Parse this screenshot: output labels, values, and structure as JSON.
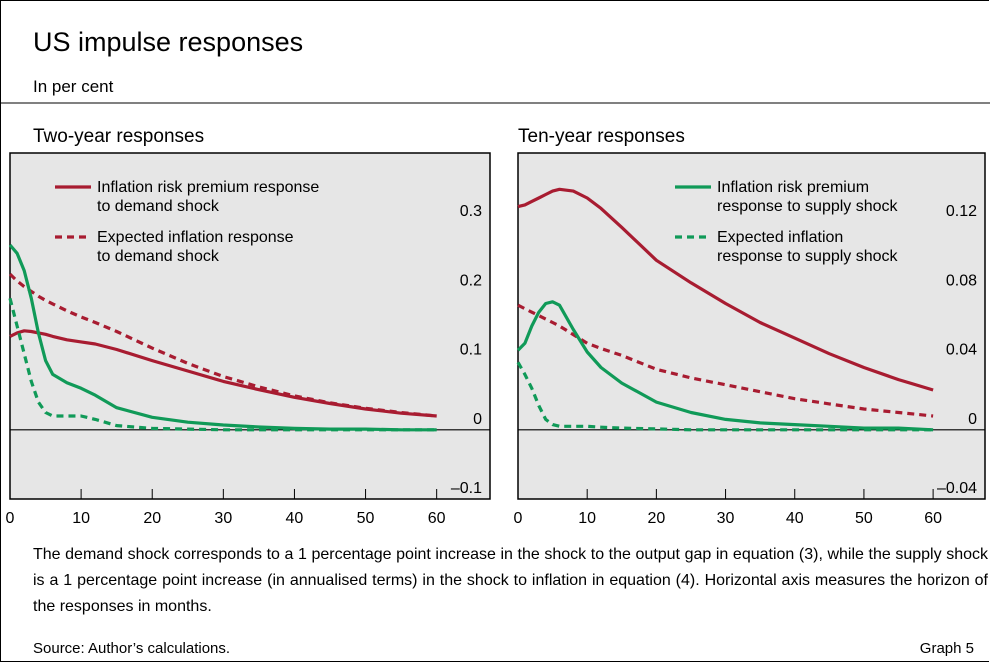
{
  "header": {
    "title": "US impulse responses",
    "subtitle": "In per cent"
  },
  "chart_data": [
    {
      "type": "line",
      "title": "Two-year responses",
      "x": [
        0,
        1,
        2,
        3,
        4,
        5,
        6,
        8,
        10,
        12,
        15,
        20,
        25,
        30,
        35,
        40,
        45,
        50,
        55,
        60
      ],
      "xlim": [
        0,
        67.5
      ],
      "xticks": [
        0,
        10,
        20,
        30,
        40,
        50,
        60
      ],
      "ylim": [
        -0.1,
        0.4
      ],
      "yticks": [
        {
          "value": -0.1,
          "label": "–0.1"
        },
        0,
        0.1,
        0.2,
        0.3
      ],
      "legend": "upper left",
      "series": [
        {
          "name": "Inflation risk premium response to demand shock",
          "color": "#a81c31",
          "dashed": false,
          "values": [
            0.135,
            0.14,
            0.143,
            0.142,
            0.14,
            0.138,
            0.135,
            0.13,
            0.127,
            0.124,
            0.116,
            0.1,
            0.085,
            0.07,
            0.058,
            0.047,
            0.038,
            0.03,
            0.024,
            0.02
          ]
        },
        {
          "name": "Expected inflation response to demand shock",
          "color": "#a81c31",
          "dashed": true,
          "values": [
            0.225,
            0.215,
            0.207,
            0.2,
            0.193,
            0.187,
            0.182,
            0.172,
            0.163,
            0.155,
            0.142,
            0.118,
            0.096,
            0.077,
            0.062,
            0.049,
            0.039,
            0.031,
            0.025,
            0.02
          ]
        },
        {
          "name": "Inflation risk premium response to supply shock",
          "color": "#109a58",
          "dashed": false,
          "values": [
            0.267,
            0.255,
            0.23,
            0.19,
            0.14,
            0.1,
            0.08,
            0.068,
            0.06,
            0.05,
            0.032,
            0.018,
            0.011,
            0.007,
            0.004,
            0.002,
            0.001,
            0.001,
            0,
            0
          ]
        },
        {
          "name": "Expected inflation response to supply shock",
          "color": "#109a58",
          "dashed": true,
          "values": [
            0.19,
            0.15,
            0.11,
            0.07,
            0.04,
            0.025,
            0.02,
            0.02,
            0.02,
            0.015,
            0.006,
            0.002,
            0.001,
            0,
            0,
            0,
            0,
            0,
            0,
            0
          ]
        }
      ]
    },
    {
      "type": "line",
      "title": "Ten-year responses",
      "x": [
        0,
        1,
        2,
        3,
        4,
        5,
        6,
        8,
        10,
        12,
        15,
        20,
        25,
        30,
        35,
        40,
        45,
        50,
        55,
        60
      ],
      "xlim": [
        0,
        67.5
      ],
      "xticks": [
        0,
        10,
        20,
        30,
        40,
        50,
        60
      ],
      "ylim": [
        -0.04,
        0.16
      ],
      "yticks": [
        {
          "value": -0.04,
          "label": "–0.04"
        },
        0,
        0.04,
        0.08,
        0.12
      ],
      "legend": "upper right",
      "series": [
        {
          "name": "Inflation risk premium response to demand shock",
          "color": "#a81c31",
          "dashed": false,
          "values": [
            0.129,
            0.13,
            0.132,
            0.134,
            0.136,
            0.138,
            0.139,
            0.138,
            0.134,
            0.128,
            0.117,
            0.098,
            0.085,
            0.073,
            0.062,
            0.053,
            0.044,
            0.036,
            0.029,
            0.023
          ]
        },
        {
          "name": "Expected inflation response to demand shock",
          "color": "#a81c31",
          "dashed": true,
          "values": [
            0.072,
            0.07,
            0.068,
            0.066,
            0.064,
            0.062,
            0.06,
            0.055,
            0.05,
            0.047,
            0.043,
            0.035,
            0.03,
            0.026,
            0.022,
            0.018,
            0.015,
            0.012,
            0.01,
            0.008
          ]
        },
        {
          "name": "Inflation risk premium response to supply shock",
          "color": "#109a58",
          "dashed": false,
          "values": [
            0.046,
            0.05,
            0.06,
            0.068,
            0.073,
            0.074,
            0.072,
            0.058,
            0.045,
            0.036,
            0.027,
            0.016,
            0.01,
            0.006,
            0.004,
            0.003,
            0.002,
            0.001,
            0.001,
            0
          ]
        },
        {
          "name": "Expected inflation response to supply shock",
          "color": "#109a58",
          "dashed": true,
          "values": [
            0.039,
            0.032,
            0.024,
            0.014,
            0.006,
            0.003,
            0.002,
            0.002,
            0.002,
            0.0015,
            0.001,
            0.0005,
            0,
            0,
            0,
            0,
            0,
            0,
            0,
            0
          ]
        }
      ]
    }
  ],
  "footer": {
    "note": "The demand shock corresponds to a 1 percentage point increase in the shock to the output gap in equation (3), while the supply shock is a 1 percentage point increase (in annualised terms) in the shock to inflation in equation (4). Horizontal axis measures the horizon of the responses in months.",
    "source": "Source: Author’s calculations.",
    "graph_label": "Graph 5"
  }
}
